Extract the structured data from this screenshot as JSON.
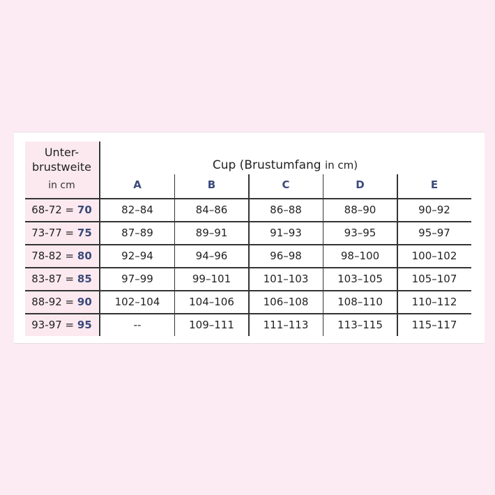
{
  "header": {
    "title_line1": "Unter-",
    "title_line2": "brustweite",
    "unit": "in cm",
    "cup_title": "Cup (Brustumfang",
    "cup_unit": "in cm)"
  },
  "columns": [
    "A",
    "B",
    "C",
    "D",
    "E"
  ],
  "rows": [
    {
      "range": "68-72 = ",
      "size": "70",
      "values": [
        "82–84",
        "84–86",
        "86–88",
        "88–90",
        "90–92"
      ]
    },
    {
      "range": "73-77 = ",
      "size": "75",
      "values": [
        "87–89",
        "89–91",
        "91–93",
        "93–95",
        "95–97"
      ]
    },
    {
      "range": "78-82 = ",
      "size": "80",
      "values": [
        "92–94",
        "94–96",
        "96–98",
        "98–100",
        "100–102"
      ]
    },
    {
      "range": "83-87 = ",
      "size": "85",
      "values": [
        "97–99",
        "99–101",
        "101–103",
        "103–105",
        "105–107"
      ]
    },
    {
      "range": "88-92 = ",
      "size": "90",
      "values": [
        "102–104",
        "104–106",
        "106–108",
        "108–110",
        "110–112"
      ]
    },
    {
      "range": "93-97 = ",
      "size": "95",
      "values": [
        "--",
        "109–111",
        "111–113",
        "113–115",
        "115–117"
      ]
    }
  ]
}
